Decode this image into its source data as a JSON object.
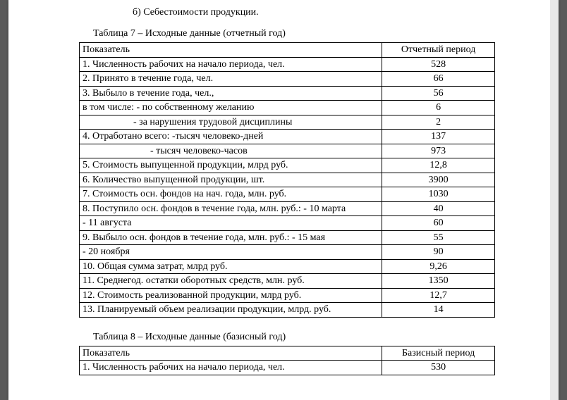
{
  "section_b": "б) Себестоимости продукции.",
  "table7": {
    "caption": "Таблица 7 – Исходные данные (отчетный год)",
    "header_indicator": "Показатель",
    "header_period": "Отчетный период",
    "rows": [
      {
        "label": "1. Численность рабочих на начало периода, чел.",
        "value": "528",
        "indent": 0
      },
      {
        "label": "2. Принято в течение года, чел.",
        "value": "66",
        "indent": 0
      },
      {
        "label": "3. Выбыло в течение года, чел.,",
        "value": "56",
        "indent": 0
      },
      {
        "label": "в том числе: - по собственному желанию",
        "value": "6",
        "indent": 0
      },
      {
        "label": "- за нарушения трудовой дисциплины",
        "value": "2",
        "indent": 1
      },
      {
        "label": "4. Отработано всего: -тысяч человеко-дней",
        "value": "137",
        "indent": 0
      },
      {
        "label": "- тысяч человеко-часов",
        "value": "973",
        "indent": 2
      },
      {
        "label": "5. Стоимость выпущенной продукции, млрд руб.",
        "value": "12,8",
        "indent": 0
      },
      {
        "label": "6. Количество выпущенной продукции, шт.",
        "value": "3900",
        "indent": 0
      },
      {
        "label": "7. Стоимость осн. фондов на нач. года, млн. руб.",
        "value": "1030",
        "indent": 0
      },
      {
        "label": "8. Поступило осн. фондов в течение года, млн. руб.: - 10 марта",
        "value": "40",
        "indent": 0
      },
      {
        "label": "- 11 августа",
        "value": "60",
        "indent": 0
      },
      {
        "label": "9. Выбыло осн. фондов в течение года, млн. руб.: - 15 мая",
        "value": "55",
        "indent": 0
      },
      {
        "label": "- 20 ноября",
        "value": "90",
        "indent": 0
      },
      {
        "label": "10. Общая сумма затрат, млрд руб.",
        "value": "9,26",
        "indent": 0
      },
      {
        "label": "11. Среднегод. остатки оборотных средств, млн. руб.",
        "value": "1350",
        "indent": 0
      },
      {
        "label": "12. Стоимость реализованной продукции, млрд руб.",
        "value": "12,7",
        "indent": 0
      },
      {
        "label": "13. Планируемый объем реализации продукции, млрд. руб.",
        "value": "14",
        "indent": 0
      }
    ]
  },
  "table8": {
    "caption": "Таблица 8 – Исходные данные (базисный год)",
    "header_indicator": "Показатель",
    "header_period": "Базисный период",
    "rows": [
      {
        "label": "1. Численность рабочих на начало периода, чел.",
        "value": "530",
        "indent": 0
      }
    ]
  }
}
